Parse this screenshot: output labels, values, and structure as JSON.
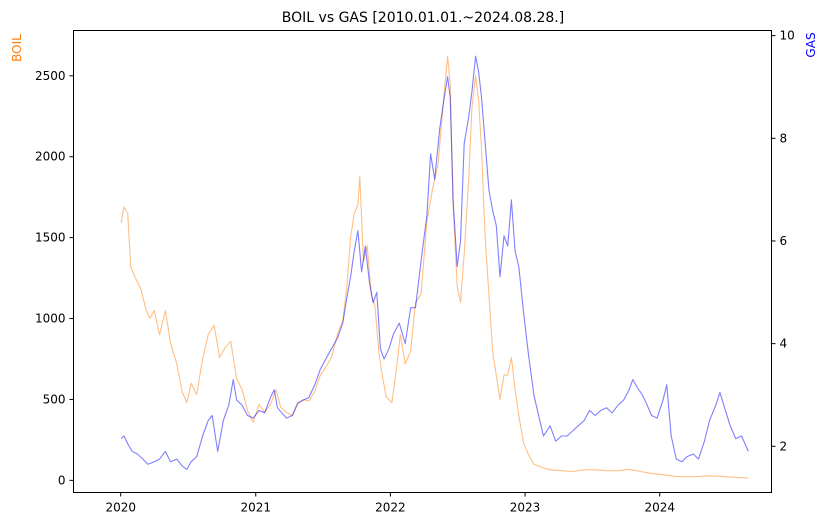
{
  "chart_data": {
    "type": "line",
    "title": "BOIL vs GAS [2010.01.01.~2024.08.28.]",
    "xlabel": "",
    "x_ticks": [
      "2020",
      "2021",
      "2022",
      "2023",
      "2024"
    ],
    "x_range": [
      "2020-01-01",
      "2024-08-28"
    ],
    "grid": false,
    "legend": "none",
    "y_left": {
      "label": "BOIL",
      "color": "#ff7f0e",
      "ticks": [
        0,
        500,
        1000,
        1500,
        2000,
        2500
      ],
      "ylim": [
        -75,
        2780
      ]
    },
    "y_right": {
      "label": "GAS",
      "color": "#0000ff",
      "ticks": [
        2,
        4,
        6,
        8,
        10
      ],
      "ylim": [
        1.1,
        10.1
      ]
    },
    "series": [
      {
        "axis": "left",
        "color": "#ff7f0e",
        "points": [
          [
            "2020-01-02",
            1590
          ],
          [
            "2020-01-10",
            1690
          ],
          [
            "2020-01-20",
            1650
          ],
          [
            "2020-01-28",
            1320
          ],
          [
            "2020-02-10",
            1250
          ],
          [
            "2020-02-25",
            1180
          ],
          [
            "2020-03-10",
            1050
          ],
          [
            "2020-03-20",
            1000
          ],
          [
            "2020-04-01",
            1050
          ],
          [
            "2020-04-15",
            900
          ],
          [
            "2020-05-01",
            1050
          ],
          [
            "2020-05-15",
            850
          ],
          [
            "2020-06-01",
            720
          ],
          [
            "2020-06-15",
            550
          ],
          [
            "2020-06-28",
            480
          ],
          [
            "2020-07-10",
            600
          ],
          [
            "2020-07-25",
            530
          ],
          [
            "2020-08-10",
            750
          ],
          [
            "2020-08-25",
            900
          ],
          [
            "2020-09-10",
            960
          ],
          [
            "2020-09-25",
            760
          ],
          [
            "2020-10-10",
            820
          ],
          [
            "2020-10-25",
            860
          ],
          [
            "2020-11-10",
            630
          ],
          [
            "2020-11-25",
            560
          ],
          [
            "2020-12-10",
            430
          ],
          [
            "2020-12-25",
            360
          ],
          [
            "2021-01-10",
            470
          ],
          [
            "2021-01-25",
            420
          ],
          [
            "2021-02-10",
            470
          ],
          [
            "2021-02-25",
            560
          ],
          [
            "2021-03-10",
            450
          ],
          [
            "2021-03-25",
            420
          ],
          [
            "2021-04-10",
            400
          ],
          [
            "2021-04-25",
            470
          ],
          [
            "2021-05-10",
            500
          ],
          [
            "2021-05-25",
            490
          ],
          [
            "2021-06-10",
            550
          ],
          [
            "2021-06-25",
            650
          ],
          [
            "2021-07-10",
            700
          ],
          [
            "2021-07-25",
            760
          ],
          [
            "2021-08-10",
            900
          ],
          [
            "2021-08-25",
            990
          ],
          [
            "2021-09-05",
            1200
          ],
          [
            "2021-09-15",
            1500
          ],
          [
            "2021-09-25",
            1650
          ],
          [
            "2021-10-05",
            1700
          ],
          [
            "2021-10-10",
            1880
          ],
          [
            "2021-10-20",
            1350
          ],
          [
            "2021-10-30",
            1450
          ],
          [
            "2021-11-10",
            1150
          ],
          [
            "2021-11-20",
            1080
          ],
          [
            "2021-12-01",
            780
          ],
          [
            "2021-12-10",
            650
          ],
          [
            "2021-12-20",
            520
          ],
          [
            "2022-01-05",
            480
          ],
          [
            "2022-01-15",
            650
          ],
          [
            "2022-01-28",
            900
          ],
          [
            "2022-02-10",
            720
          ],
          [
            "2022-02-25",
            800
          ],
          [
            "2022-03-10",
            1100
          ],
          [
            "2022-03-25",
            1150
          ],
          [
            "2022-04-10",
            1600
          ],
          [
            "2022-04-25",
            1800
          ],
          [
            "2022-05-10",
            1950
          ],
          [
            "2022-05-25",
            2350
          ],
          [
            "2022-06-05",
            2620
          ],
          [
            "2022-06-12",
            2450
          ],
          [
            "2022-06-20",
            1700
          ],
          [
            "2022-07-01",
            1200
          ],
          [
            "2022-07-10",
            1100
          ],
          [
            "2022-07-20",
            1400
          ],
          [
            "2022-08-01",
            1850
          ],
          [
            "2022-08-10",
            2300
          ],
          [
            "2022-08-20",
            2500
          ],
          [
            "2022-08-28",
            2350
          ],
          [
            "2022-09-05",
            2050
          ],
          [
            "2022-09-15",
            1500
          ],
          [
            "2022-09-25",
            1150
          ],
          [
            "2022-10-05",
            800
          ],
          [
            "2022-10-15",
            650
          ],
          [
            "2022-10-25",
            500
          ],
          [
            "2022-11-05",
            650
          ],
          [
            "2022-11-15",
            650
          ],
          [
            "2022-11-25",
            760
          ],
          [
            "2022-12-05",
            560
          ],
          [
            "2022-12-15",
            400
          ],
          [
            "2022-12-28",
            230
          ],
          [
            "2023-01-10",
            160
          ],
          [
            "2023-01-25",
            100
          ],
          [
            "2023-02-15",
            80
          ],
          [
            "2023-03-10",
            65
          ],
          [
            "2023-04-10",
            60
          ],
          [
            "2023-05-10",
            55
          ],
          [
            "2023-06-10",
            65
          ],
          [
            "2023-07-10",
            65
          ],
          [
            "2023-08-10",
            60
          ],
          [
            "2023-09-10",
            60
          ],
          [
            "2023-10-10",
            68
          ],
          [
            "2023-11-10",
            55
          ],
          [
            "2023-12-10",
            42
          ],
          [
            "2024-01-10",
            35
          ],
          [
            "2024-02-10",
            25
          ],
          [
            "2024-03-10",
            22
          ],
          [
            "2024-04-10",
            24
          ],
          [
            "2024-05-10",
            28
          ],
          [
            "2024-06-10",
            26
          ],
          [
            "2024-07-10",
            20
          ],
          [
            "2024-08-28",
            14
          ]
        ]
      },
      {
        "axis": "right",
        "color": "#0000ff",
        "points": [
          [
            "2020-01-02",
            2.15
          ],
          [
            "2020-01-10",
            2.2
          ],
          [
            "2020-01-20",
            2.05
          ],
          [
            "2020-02-01",
            1.9
          ],
          [
            "2020-02-15",
            1.85
          ],
          [
            "2020-03-01",
            1.75
          ],
          [
            "2020-03-15",
            1.65
          ],
          [
            "2020-04-01",
            1.7
          ],
          [
            "2020-04-15",
            1.75
          ],
          [
            "2020-05-01",
            1.9
          ],
          [
            "2020-05-15",
            1.7
          ],
          [
            "2020-06-01",
            1.75
          ],
          [
            "2020-06-15",
            1.62
          ],
          [
            "2020-06-28",
            1.55
          ],
          [
            "2020-07-10",
            1.7
          ],
          [
            "2020-07-25",
            1.8
          ],
          [
            "2020-08-10",
            2.2
          ],
          [
            "2020-08-25",
            2.5
          ],
          [
            "2020-09-05",
            2.6
          ],
          [
            "2020-09-20",
            1.9
          ],
          [
            "2020-10-05",
            2.5
          ],
          [
            "2020-10-20",
            2.8
          ],
          [
            "2020-11-01",
            3.3
          ],
          [
            "2020-11-10",
            2.9
          ],
          [
            "2020-11-25",
            2.8
          ],
          [
            "2020-12-10",
            2.6
          ],
          [
            "2020-12-25",
            2.55
          ],
          [
            "2021-01-10",
            2.7
          ],
          [
            "2021-01-25",
            2.65
          ],
          [
            "2021-02-10",
            2.95
          ],
          [
            "2021-02-20",
            3.1
          ],
          [
            "2021-03-01",
            2.75
          ],
          [
            "2021-03-25",
            2.55
          ],
          [
            "2021-04-10",
            2.6
          ],
          [
            "2021-04-25",
            2.85
          ],
          [
            "2021-05-10",
            2.9
          ],
          [
            "2021-05-25",
            2.95
          ],
          [
            "2021-06-10",
            3.2
          ],
          [
            "2021-06-25",
            3.5
          ],
          [
            "2021-07-10",
            3.7
          ],
          [
            "2021-07-25",
            3.9
          ],
          [
            "2021-08-10",
            4.1
          ],
          [
            "2021-08-25",
            4.4
          ],
          [
            "2021-09-05",
            4.9
          ],
          [
            "2021-09-15",
            5.3
          ],
          [
            "2021-09-25",
            5.8
          ],
          [
            "2021-10-05",
            6.2
          ],
          [
            "2021-10-15",
            5.4
          ],
          [
            "2021-10-25",
            5.9
          ],
          [
            "2021-11-05",
            5.2
          ],
          [
            "2021-11-15",
            4.8
          ],
          [
            "2021-11-25",
            5.0
          ],
          [
            "2021-12-05",
            3.9
          ],
          [
            "2021-12-15",
            3.7
          ],
          [
            "2021-12-28",
            3.9
          ],
          [
            "2022-01-10",
            4.2
          ],
          [
            "2022-01-25",
            4.4
          ],
          [
            "2022-02-10",
            4.0
          ],
          [
            "2022-02-25",
            4.7
          ],
          [
            "2022-03-10",
            4.7
          ],
          [
            "2022-03-25",
            5.6
          ],
          [
            "2022-04-10",
            6.5
          ],
          [
            "2022-04-20",
            7.7
          ],
          [
            "2022-05-01",
            7.2
          ],
          [
            "2022-05-15",
            8.2
          ],
          [
            "2022-05-25",
            8.7
          ],
          [
            "2022-06-05",
            9.2
          ],
          [
            "2022-06-12",
            8.8
          ],
          [
            "2022-06-20",
            6.8
          ],
          [
            "2022-07-01",
            5.5
          ],
          [
            "2022-07-10",
            6.0
          ],
          [
            "2022-07-20",
            7.9
          ],
          [
            "2022-08-01",
            8.4
          ],
          [
            "2022-08-10",
            8.9
          ],
          [
            "2022-08-20",
            9.6
          ],
          [
            "2022-08-28",
            9.3
          ],
          [
            "2022-09-05",
            8.8
          ],
          [
            "2022-09-15",
            7.9
          ],
          [
            "2022-09-25",
            7.0
          ],
          [
            "2022-10-05",
            6.6
          ],
          [
            "2022-10-15",
            6.3
          ],
          [
            "2022-10-25",
            5.3
          ],
          [
            "2022-11-05",
            6.1
          ],
          [
            "2022-11-15",
            5.9
          ],
          [
            "2022-11-25",
            6.8
          ],
          [
            "2022-12-05",
            5.8
          ],
          [
            "2022-12-15",
            5.5
          ],
          [
            "2022-12-28",
            4.6
          ],
          [
            "2023-01-10",
            3.8
          ],
          [
            "2023-01-25",
            3.0
          ],
          [
            "2023-02-10",
            2.5
          ],
          [
            "2023-02-20",
            2.2
          ],
          [
            "2023-03-10",
            2.4
          ],
          [
            "2023-03-25",
            2.1
          ],
          [
            "2023-04-10",
            2.2
          ],
          [
            "2023-04-25",
            2.2
          ],
          [
            "2023-05-10",
            2.3
          ],
          [
            "2023-05-25",
            2.4
          ],
          [
            "2023-06-10",
            2.5
          ],
          [
            "2023-06-25",
            2.7
          ],
          [
            "2023-07-10",
            2.6
          ],
          [
            "2023-07-25",
            2.7
          ],
          [
            "2023-08-10",
            2.75
          ],
          [
            "2023-08-25",
            2.65
          ],
          [
            "2023-09-10",
            2.8
          ],
          [
            "2023-09-25",
            2.9
          ],
          [
            "2023-10-10",
            3.1
          ],
          [
            "2023-10-20",
            3.3
          ],
          [
            "2023-11-01",
            3.15
          ],
          [
            "2023-11-15",
            3.0
          ],
          [
            "2023-11-25",
            2.85
          ],
          [
            "2023-12-10",
            2.6
          ],
          [
            "2023-12-25",
            2.55
          ],
          [
            "2024-01-10",
            2.9
          ],
          [
            "2024-01-20",
            3.2
          ],
          [
            "2024-02-01",
            2.2
          ],
          [
            "2024-02-15",
            1.75
          ],
          [
            "2024-03-01",
            1.7
          ],
          [
            "2024-03-15",
            1.8
          ],
          [
            "2024-04-01",
            1.85
          ],
          [
            "2024-04-15",
            1.75
          ],
          [
            "2024-05-01",
            2.1
          ],
          [
            "2024-05-15",
            2.5
          ],
          [
            "2024-06-01",
            2.8
          ],
          [
            "2024-06-12",
            3.05
          ],
          [
            "2024-06-25",
            2.75
          ],
          [
            "2024-07-10",
            2.4
          ],
          [
            "2024-07-25",
            2.15
          ],
          [
            "2024-08-10",
            2.2
          ],
          [
            "2024-08-28",
            1.9
          ]
        ]
      }
    ]
  }
}
